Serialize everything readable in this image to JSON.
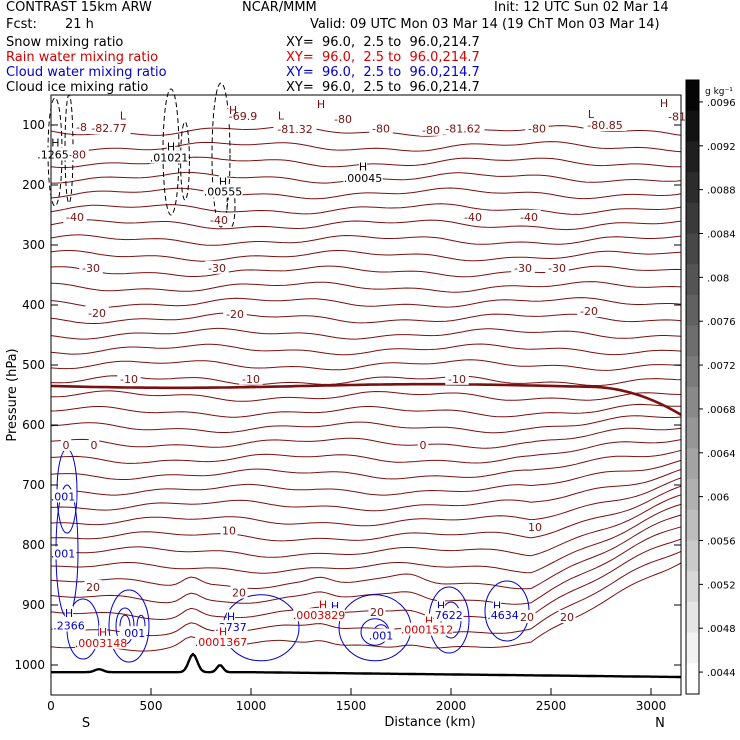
{
  "header": {
    "model": "CONTRAST 15km ARW",
    "org": "NCAR/MMM",
    "init": "Init: 12 UTC Sun 02 Mar 14",
    "fcst_label": "Fcst:",
    "fcst_value": "21 h",
    "valid": "Valid: 09 UTC Mon 03 Mar 14 (19 ChT Mon 03 Mar 14)"
  },
  "fields": [
    {
      "name": "Snow mixing ratio",
      "xy": "XY=  96.0,  2.5 to  96.0,214.7",
      "color": "#000000"
    },
    {
      "name": "Rain water mixing ratio",
      "xy": "XY=  96.0,  2.5 to  96.0,214.7",
      "color": "#d40000"
    },
    {
      "name": "Cloud water mixing ratio",
      "xy": "XY=  96.0,  2.5 to  96.0,214.7",
      "color": "#0000cc"
    },
    {
      "name": "Cloud ice mixing ratio",
      "xy": "XY=  96.0,  2.5 to  96.0,214.7",
      "color": "#000000"
    }
  ],
  "chart_data": {
    "type": "contour cross-section",
    "xlabel": "Distance (km)",
    "ylabel": "Pressure (hPa)",
    "xlim": [
      0,
      3150
    ],
    "ylim": [
      1050,
      50
    ],
    "x_ticks": [
      0,
      500,
      1000,
      1500,
      2000,
      2500,
      3000
    ],
    "y_ticks": [
      100,
      200,
      300,
      400,
      500,
      600,
      700,
      800,
      900,
      1000
    ],
    "endpoints": {
      "left": "S",
      "right": "N"
    },
    "colors": {
      "temperature": "#7a1010",
      "zero_isotherm": "#7a1010",
      "terrain": "#000000",
      "rain": "#d40000",
      "cloud_water": "#0000cc",
      "snow_ice": "#000000"
    },
    "temperature_labels": [
      {
        "text": "-80",
        "x": 170,
        "p": 103
      },
      {
        "text": "-82.77",
        "x": 290,
        "p": 105
      },
      {
        "text": "-69.9",
        "x": 960,
        "p": 85
      },
      {
        "text": "-81.32",
        "x": 1220,
        "p": 107
      },
      {
        "text": "-80",
        "x": 1460,
        "p": 90
      },
      {
        "text": "-80",
        "x": 1650,
        "p": 106
      },
      {
        "text": "-80",
        "x": 1900,
        "p": 108
      },
      {
        "text": "-81.62",
        "x": 2060,
        "p": 106
      },
      {
        "text": "-80",
        "x": 2430,
        "p": 106
      },
      {
        "text": "-80.85",
        "x": 2770,
        "p": 100
      },
      {
        "text": "-81",
        "x": 3130,
        "p": 86
      },
      {
        "text": "-80",
        "x": 130,
        "p": 149
      },
      {
        "text": "-40",
        "x": 120,
        "p": 253
      },
      {
        "text": "-40",
        "x": 840,
        "p": 258
      },
      {
        "text": "-40",
        "x": 2110,
        "p": 253
      },
      {
        "text": "-40",
        "x": 2390,
        "p": 253
      },
      {
        "text": "-30",
        "x": 200,
        "p": 338
      },
      {
        "text": "-30",
        "x": 830,
        "p": 338
      },
      {
        "text": "-30",
        "x": 2360,
        "p": 338
      },
      {
        "text": "-30",
        "x": 2530,
        "p": 338
      },
      {
        "text": "-20",
        "x": 230,
        "p": 413
      },
      {
        "text": "-20",
        "x": 920,
        "p": 415
      },
      {
        "text": "-20",
        "x": 2690,
        "p": 410
      },
      {
        "text": "-10",
        "x": 390,
        "p": 523
      },
      {
        "text": "-10",
        "x": 1000,
        "p": 523
      },
      {
        "text": "-10",
        "x": 2030,
        "p": 523
      },
      {
        "text": "0",
        "x": 75,
        "p": 633
      },
      {
        "text": "0",
        "x": 215,
        "p": 633
      },
      {
        "text": "0",
        "x": 1860,
        "p": 633
      },
      {
        "text": "10",
        "x": 890,
        "p": 776
      },
      {
        "text": "10",
        "x": 2420,
        "p": 770
      },
      {
        "text": "20",
        "x": 210,
        "p": 870
      },
      {
        "text": "20",
        "x": 940,
        "p": 879
      },
      {
        "text": "20",
        "x": 1630,
        "p": 912
      },
      {
        "text": "20",
        "x": 2380,
        "p": 920
      },
      {
        "text": "20",
        "x": 2580,
        "p": 920
      }
    ],
    "markers": [
      {
        "text": "L",
        "x": 360,
        "p": 84,
        "color": "#7a1010"
      },
      {
        "text": "L",
        "x": 1150,
        "p": 84,
        "color": "#7a1010"
      },
      {
        "text": "L",
        "x": 2700,
        "p": 82,
        "color": "#7a1010"
      },
      {
        "text": "H",
        "x": 910,
        "p": 75,
        "color": "#7a1010"
      },
      {
        "text": "H",
        "x": 1350,
        "p": 65,
        "color": "#7a1010"
      },
      {
        "text": "H",
        "x": 3065,
        "p": 63,
        "color": "#7a1010"
      }
    ],
    "extrema": [
      {
        "text": "H",
        "x": 22,
        "p": 129,
        "color": "#000000"
      },
      {
        "text": ".1265",
        "x": 10,
        "p": 149,
        "color": "#000000"
      },
      {
        "text": "H",
        "x": 600,
        "p": 136,
        "color": "#000000"
      },
      {
        "text": ".01021",
        "x": 590,
        "p": 154,
        "color": "#000000"
      },
      {
        "text": "H",
        "x": 860,
        "p": 194,
        "color": "#000000"
      },
      {
        "text": ".00555",
        "x": 860,
        "p": 211,
        "color": "#000000"
      },
      {
        "text": "H",
        "x": 1560,
        "p": 169,
        "color": "#000000"
      },
      {
        "text": ".00045",
        "x": 1560,
        "p": 188,
        "color": "#000000"
      },
      {
        "text": ".001",
        "x": 60,
        "p": 719,
        "color": "#0000cc"
      },
      {
        "text": ".001",
        "x": 60,
        "p": 814,
        "color": "#0000cc"
      },
      {
        "text": "H",
        "x": 90,
        "p": 913,
        "color": "#0000cc"
      },
      {
        "text": ".2366",
        "x": 90,
        "p": 934,
        "color": "#0000cc"
      },
      {
        "text": ".001",
        "x": 410,
        "p": 947,
        "color": "#0000cc"
      },
      {
        "text": "H",
        "x": 900,
        "p": 919,
        "color": "#0000cc"
      },
      {
        "text": ".3737",
        "x": 900,
        "p": 937,
        "color": "#0000cc"
      },
      {
        "text": "H",
        "x": 1420,
        "p": 902,
        "color": "#0000cc"
      },
      {
        "text": ".001",
        "x": 1650,
        "p": 951,
        "color": "#0000cc"
      },
      {
        "text": "H",
        "x": 1950,
        "p": 901,
        "color": "#0000cc"
      },
      {
        "text": ".7622",
        "x": 1980,
        "p": 917,
        "color": "#0000cc"
      },
      {
        "text": "H",
        "x": 2230,
        "p": 901,
        "color": "#0000cc"
      },
      {
        "text": ".4634",
        "x": 2260,
        "p": 917,
        "color": "#0000cc"
      },
      {
        "text": "H",
        "x": 260,
        "p": 945,
        "color": "#d40000"
      },
      {
        "text": ".0003148",
        "x": 250,
        "p": 963,
        "color": "#d40000"
      },
      {
        "text": "H",
        "x": 860,
        "p": 944,
        "color": "#d40000"
      },
      {
        "text": ".0001367",
        "x": 850,
        "p": 962,
        "color": "#d40000"
      },
      {
        "text": "H",
        "x": 1360,
        "p": 899,
        "color": "#d40000"
      },
      {
        "text": ".0003829",
        "x": 1340,
        "p": 917,
        "color": "#d40000"
      },
      {
        "text": "H",
        "x": 1890,
        "p": 926,
        "color": "#d40000"
      },
      {
        "text": ".0001512",
        "x": 1880,
        "p": 941,
        "color": "#d40000"
      }
    ],
    "colorbar": {
      "unit": "g kg⁻¹",
      "labels": [
        ".0096",
        ".0092",
        ".0088",
        ".0084",
        ".008",
        ".0076",
        ".0072",
        ".0068",
        ".0064",
        ".006",
        ".0056",
        ".0052",
        ".0048",
        ".0044"
      ]
    }
  }
}
